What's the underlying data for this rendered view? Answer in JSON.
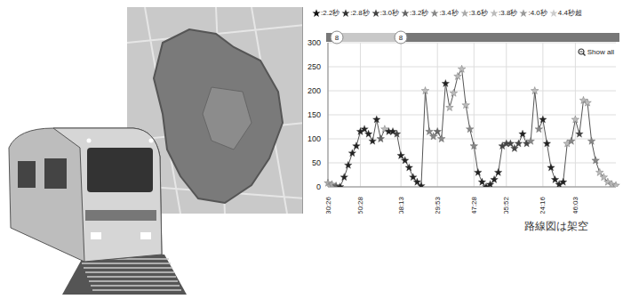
{
  "caption": "路線図は架空",
  "chart_data": {
    "type": "line",
    "marker": "star",
    "color": "#555555",
    "grid": true,
    "legend_entries": [
      {
        "label": ":2.2秒",
        "color": "#111111"
      },
      {
        "label": ":2.8秒",
        "color": "#333333"
      },
      {
        "label": ":3.0秒",
        "color": "#444444"
      },
      {
        "label": ":3.2秒",
        "color": "#666666"
      },
      {
        "label": ":3.4秒",
        "color": "#888888"
      },
      {
        "label": ":3.6秒",
        "color": "#aaaaaa"
      },
      {
        "label": ":3.8秒",
        "color": "#bbbbbb"
      },
      {
        "label": ":4.0秒",
        "color": "#999999"
      },
      {
        "label": "4.4秒超",
        "color": "#cccccc"
      }
    ],
    "slider_labels": [
      "8",
      "8"
    ],
    "button": "Show all",
    "ylim": [
      0,
      300
    ],
    "yticks": [
      0,
      50,
      100,
      150,
      200,
      250,
      300
    ],
    "categories": [
      "30:26",
      null,
      null,
      null,
      null,
      null,
      null,
      null,
      "50:28",
      null,
      null,
      null,
      null,
      null,
      null,
      null,
      null,
      null,
      "08:13",
      null,
      null,
      null,
      null,
      null,
      null,
      null,
      null,
      "29:53",
      null,
      null,
      null,
      null,
      null,
      null,
      null,
      null,
      "47:28",
      null,
      null,
      null,
      null,
      null,
      null,
      null,
      "05:52",
      null,
      null,
      null,
      null,
      null,
      null,
      null,
      null,
      "24:16",
      null,
      null,
      null,
      null,
      null,
      null,
      null,
      "46:03",
      null,
      null,
      null,
      null,
      null,
      null,
      null,
      null,
      null,
      null
    ],
    "values": [
      8,
      5,
      2,
      0,
      20,
      45,
      70,
      85,
      115,
      120,
      110,
      95,
      140,
      100,
      120,
      115,
      115,
      110,
      65,
      55,
      40,
      20,
      10,
      2,
      200,
      115,
      105,
      115,
      100,
      215,
      165,
      195,
      230,
      245,
      170,
      120,
      85,
      30,
      10,
      0,
      5,
      15,
      30,
      85,
      90,
      90,
      80,
      90,
      110,
      90,
      95,
      200,
      120,
      140,
      90,
      40,
      15,
      5,
      10,
      90,
      95,
      140,
      110,
      180,
      175,
      95,
      55,
      30,
      20,
      10,
      5,
      3
    ],
    "colors": [
      "#aaaaaa",
      "#aaaaaa",
      "#666666",
      "#222222",
      "#222222",
      "#222222",
      "#222222",
      "#222222",
      "#222222",
      "#222222",
      "#222222",
      "#222222",
      "#222222",
      "#666666",
      "#bbbbbb",
      "#222222",
      "#222222",
      "#444444",
      "#222222",
      "#222222",
      "#222222",
      "#222222",
      "#222222",
      "#222222",
      "#bbbbbb",
      "#888888",
      "#888888",
      "#666666",
      "#888888",
      "#222222",
      "#bbbbbb",
      "#bbbbbb",
      "#bbbbbb",
      "#bbbbbb",
      "#bbbbbb",
      "#888888",
      "#888888",
      "#222222",
      "#222222",
      "#222222",
      "#222222",
      "#222222",
      "#222222",
      "#444444",
      "#444444",
      "#444444",
      "#444444",
      "#444444",
      "#222222",
      "#444444",
      "#888888",
      "#bbbbbb",
      "#888888",
      "#222222",
      "#222222",
      "#222222",
      "#222222",
      "#222222",
      "#222222",
      "#bbbbbb",
      "#888888",
      "#bbbbbb",
      "#444444",
      "#bbbbbb",
      "#bbbbbb",
      "#888888",
      "#888888",
      "#bbbbbb",
      "#bbbbbb",
      "#bbbbbb",
      "#bbbbbb",
      "#bbbbbb"
    ]
  }
}
